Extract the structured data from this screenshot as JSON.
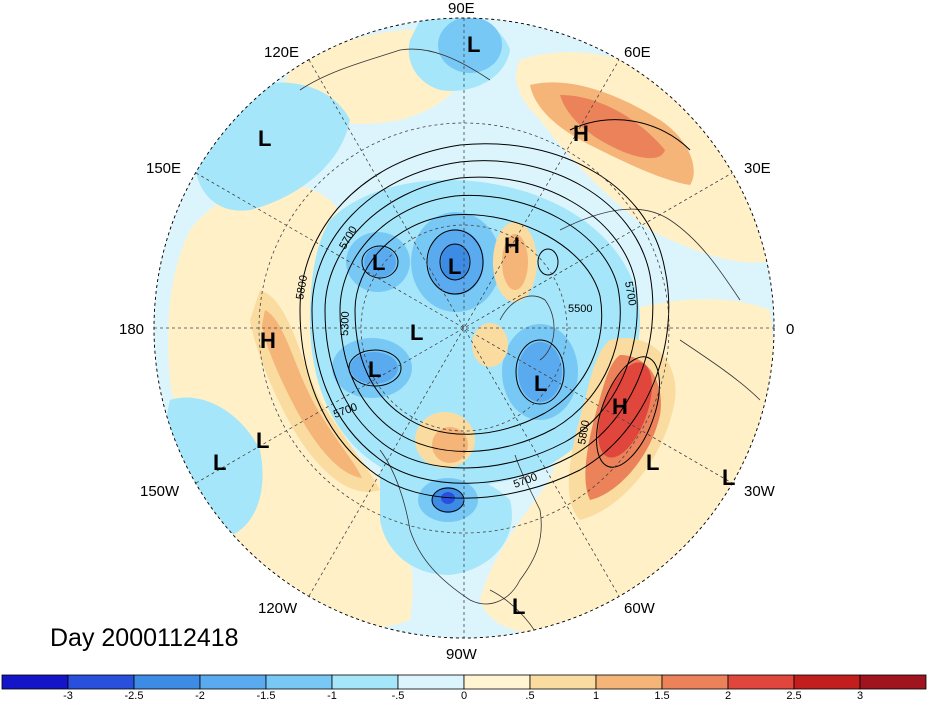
{
  "title": "Day 2000112418",
  "longitude_labels": [
    "90E",
    "120E",
    "60E",
    "150E",
    "30E",
    "180",
    "0",
    "150W",
    "30W",
    "120W",
    "60W",
    "90W"
  ],
  "pressure_centers": [
    "L",
    "L",
    "L",
    "L",
    "L",
    "L",
    "L",
    "L",
    "L",
    "L",
    "L",
    "L",
    "H",
    "H",
    "H",
    "H"
  ],
  "contour_labels": [
    "5700",
    "5800",
    "5300",
    "5500",
    "5700",
    "5700",
    "5700",
    "5800"
  ],
  "colorbar": {
    "ticks": [
      "-3",
      "-2.5",
      "-2",
      "-1.5",
      "-1",
      "-.5",
      "0",
      ".5",
      "1",
      "1.5",
      "2",
      "2.5",
      "3"
    ],
    "colors": [
      "#1414c8",
      "#2850dc",
      "#3c8ce6",
      "#5aaaf0",
      "#78c8f5",
      "#a6e6fa",
      "#dcf5fc",
      "#fff5d2",
      "#fadca0",
      "#f5b478",
      "#eb825a",
      "#e1463c",
      "#c31e1e",
      "#a01420"
    ]
  },
  "map_colors": {
    "ocean": "#dcf5fc",
    "warm_light": "#fff0c8",
    "warm_mid": "#fadca0",
    "warm_strong": "#f5b478",
    "warm_core": "#eb825a",
    "cold_light": "#a6e6fa",
    "cold_mid": "#78c8f5",
    "cold_strong": "#5aaaf0",
    "cold_core": "#3c8ce6"
  }
}
